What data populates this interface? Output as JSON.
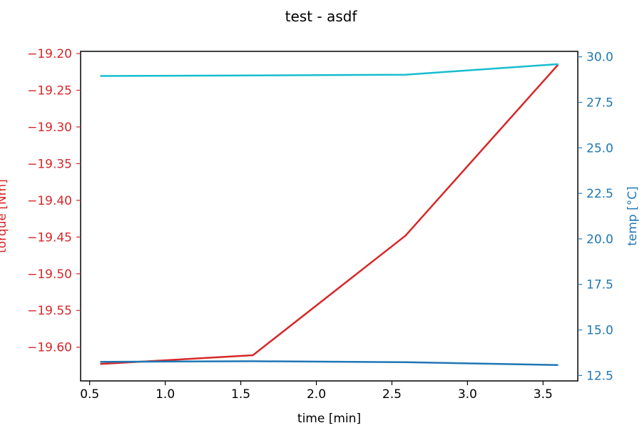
{
  "chart_data": {
    "type": "line",
    "title": "test - asdf",
    "xlabel": "time [min]",
    "ylabel_left": "torque [Nm]",
    "ylabel_right": "temp [°C]",
    "xlim": [
      0.44,
      3.73
    ],
    "ylim_left": [
      -19.646,
      -19.197
    ],
    "ylim_right": [
      12.2,
      30.3
    ],
    "x_ticks": [
      0.5,
      1.0,
      1.5,
      2.0,
      2.5,
      3.0,
      3.5
    ],
    "x_tick_labels": [
      "0.5",
      "1.0",
      "1.5",
      "2.0",
      "2.5",
      "3.0",
      "3.5"
    ],
    "y_left_ticks": [
      -19.2,
      -19.25,
      -19.3,
      -19.35,
      -19.4,
      -19.45,
      -19.5,
      -19.55,
      -19.6
    ],
    "y_left_tick_labels": [
      "−19.20",
      "−19.25",
      "−19.30",
      "−19.35",
      "−19.40",
      "−19.45",
      "−19.50",
      "−19.55",
      "−19.60"
    ],
    "y_right_ticks": [
      12.5,
      15.0,
      17.5,
      20.0,
      22.5,
      25.0,
      27.5,
      30.0
    ],
    "y_right_tick_labels": [
      "12.5",
      "15.0",
      "17.5",
      "20.0",
      "22.5",
      "25.0",
      "27.5",
      "30.0"
    ],
    "grid": false,
    "series": [
      {
        "axis": "left",
        "color": "#d62728",
        "x": [
          0.57,
          1.58,
          2.59,
          3.6
        ],
        "y": [
          -19.623,
          -19.611,
          -19.448,
          -19.215
        ]
      },
      {
        "axis": "right",
        "color": "#17becf",
        "x": [
          0.57,
          1.58,
          2.59,
          3.6
        ],
        "y": [
          28.95,
          28.98,
          29.02,
          29.6
        ]
      },
      {
        "axis": "right",
        "color": "#1f77b4",
        "x": [
          0.57,
          1.58,
          2.59,
          3.6
        ],
        "y": [
          13.25,
          13.28,
          13.23,
          13.07
        ]
      }
    ],
    "colors": {
      "left_axis": "#d62728",
      "right_axis": "#1f77b4",
      "frame": "#000000"
    }
  }
}
